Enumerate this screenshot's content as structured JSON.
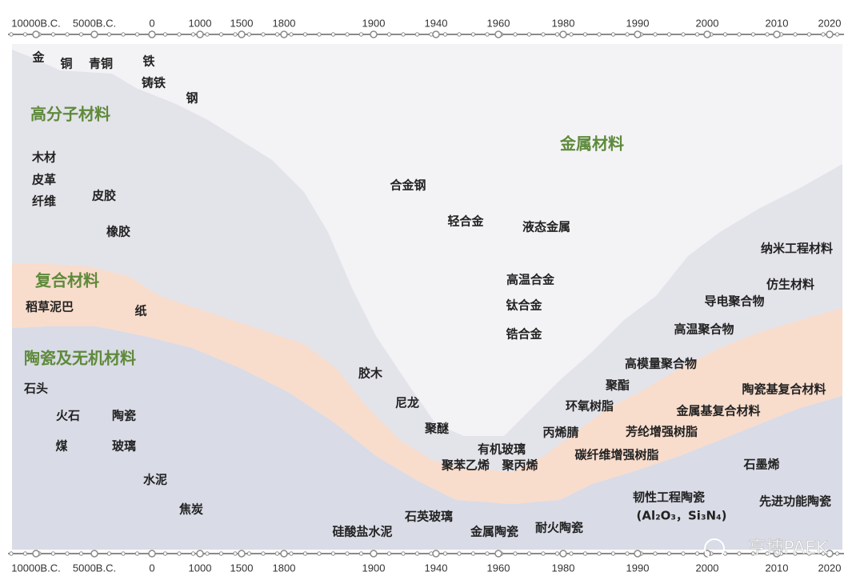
{
  "timeline": {
    "labels": [
      "10000B.C.",
      "5000B.C.",
      "0",
      "1000",
      "1500",
      "1800",
      "1900",
      "1940",
      "1960",
      "1980",
      "1990",
      "2000",
      "2010",
      "2020"
    ]
  },
  "regions": {
    "polymer": "高分子材料",
    "composite": "复合材料",
    "ceramic": "陶瓷及无机材料",
    "metal": "金属材料"
  },
  "items": [
    "金",
    "铜",
    "青铜",
    "铁",
    "铸铁",
    "钢",
    "木材",
    "皮革",
    "纤维",
    "皮胶",
    "橡胶",
    "合金钢",
    "轻合金",
    "液态金属",
    "高温合金",
    "钛合金",
    "锆合金",
    "纳米工程材料",
    "仿生材料",
    "导电聚合物",
    "高温聚合物",
    "高模量聚合物",
    "聚酯",
    "环氧树脂",
    "丙烯腈",
    "芳纶增强树脂",
    "金属基复合材料",
    "陶瓷基复合材料",
    "碳纤维增强树脂",
    "有机玻璃",
    "聚苯乙烯",
    "聚丙烯",
    "聚醚",
    "尼龙",
    "胶木",
    "稻草泥巴",
    "纸",
    "石头",
    "火石",
    "陶瓷",
    "煤",
    "玻璃",
    "水泥",
    "焦炭",
    "硅酸盐水泥",
    "石英玻璃",
    "金属陶瓷",
    "耐火陶瓷",
    "韧性工程陶瓷",
    "(Al₂O₃，Si₃N₄)",
    "石墨烯",
    "先进功能陶瓷"
  ],
  "watermark": "亨博PAEK"
}
